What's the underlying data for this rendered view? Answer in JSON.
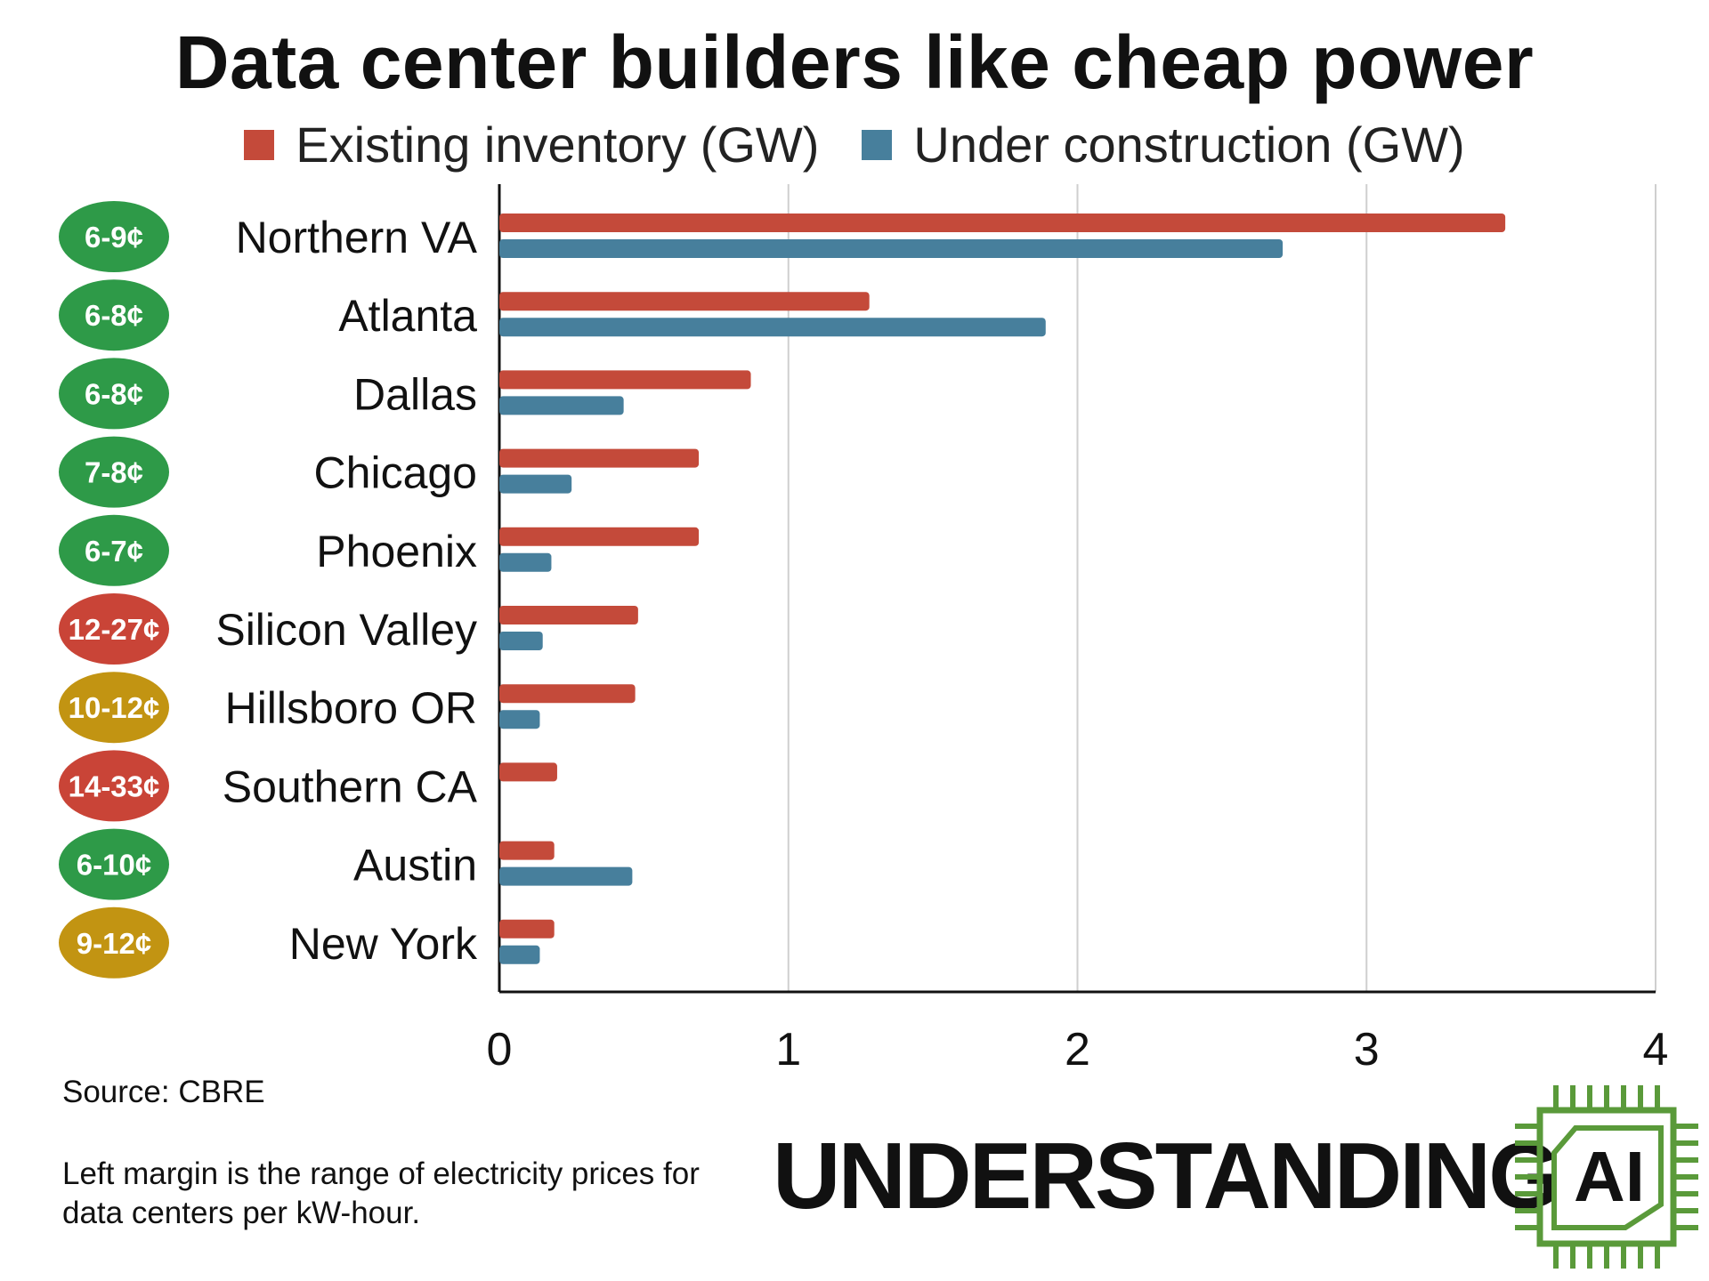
{
  "chart_data": {
    "type": "bar",
    "orientation": "horizontal",
    "title": "Data center builders like cheap power",
    "categories": [
      "Northern VA",
      "Atlanta",
      "Dallas",
      "Chicago",
      "Phoenix",
      "Silicon Valley",
      "Hillsboro OR",
      "Southern CA",
      "Austin",
      "New York"
    ],
    "series": [
      {
        "name": "Existing inventory (GW)",
        "color": "#c44a3a",
        "values": [
          3.48,
          1.28,
          0.87,
          0.69,
          0.69,
          0.48,
          0.47,
          0.2,
          0.19,
          0.19
        ]
      },
      {
        "name": "Under construction (GW)",
        "color": "#477f9c",
        "values": [
          2.71,
          1.89,
          0.43,
          0.25,
          0.18,
          0.15,
          0.14,
          0.0,
          0.46,
          0.14
        ]
      }
    ],
    "xlim": [
      0,
      4
    ],
    "xticks": [
      "0",
      "1",
      "2",
      "3",
      "4"
    ],
    "grid": true,
    "legend_position": "top",
    "price_badges": [
      {
        "text": "6-9¢",
        "color": "#2e9a48"
      },
      {
        "text": "6-8¢",
        "color": "#2e9a48"
      },
      {
        "text": "6-8¢",
        "color": "#2e9a48"
      },
      {
        "text": "7-8¢",
        "color": "#2e9a48"
      },
      {
        "text": "6-7¢",
        "color": "#2e9a48"
      },
      {
        "text": "12-27¢",
        "color": "#c94437"
      },
      {
        "text": "10-12¢",
        "color": "#c29412"
      },
      {
        "text": "14-33¢",
        "color": "#c94437"
      },
      {
        "text": "6-10¢",
        "color": "#2e9a48"
      },
      {
        "text": "9-12¢",
        "color": "#c29412"
      }
    ]
  },
  "notes": {
    "source": "Source: CBRE",
    "margin": "Left margin is the range of electricity prices for data centers per kW-hour."
  },
  "logo": {
    "word": "UNDERSTANDING",
    "mark": "AI",
    "mark_color": "#5a9a3a",
    "icon": "chip-icon"
  }
}
